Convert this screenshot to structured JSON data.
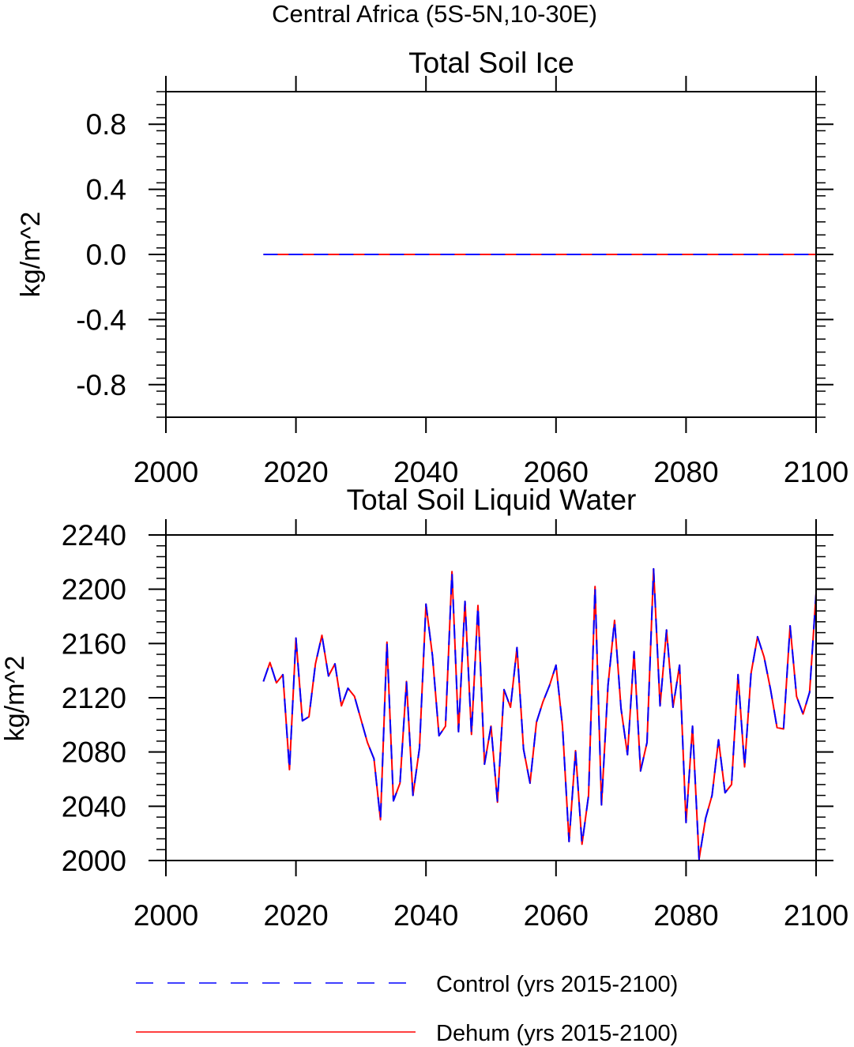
{
  "figure_title": "Central Africa (5S-5N,10-30E)",
  "legend": {
    "control_label": "Control (yrs 2015-2100)",
    "dehum_label": "Dehum (yrs 2015-2100)",
    "control_color": "#0000ff",
    "dehum_color": "#ff0000"
  },
  "chart_data": [
    {
      "type": "line",
      "title": "Total Soil Ice",
      "xlabel": "",
      "ylabel": "kg/m^2",
      "xlim": [
        2000,
        2100
      ],
      "ylim": [
        -1.0,
        1.0
      ],
      "x_ticks": [
        2000,
        2020,
        2040,
        2060,
        2080,
        2100
      ],
      "y_ticks": [
        -0.8,
        -0.4,
        0.0,
        0.4,
        0.8
      ],
      "y_tick_labels": [
        "-0.8",
        "-0.4",
        "0.0",
        "0.4",
        "0.8"
      ],
      "x": [
        2015,
        2100
      ],
      "series": [
        {
          "name": "Control (yrs 2015-2100)",
          "color": "#0000ff",
          "style": "dashed",
          "values": [
            0.0,
            0.0
          ]
        },
        {
          "name": "Dehum (yrs 2015-2100)",
          "color": "#ff0000",
          "style": "solid",
          "values": [
            0.0,
            0.0
          ]
        }
      ]
    },
    {
      "type": "line",
      "title": "Total Soil Liquid Water",
      "xlabel": "",
      "ylabel": "kg/m^2",
      "xlim": [
        2000,
        2100
      ],
      "ylim": [
        2000,
        2240
      ],
      "x_ticks": [
        2000,
        2020,
        2040,
        2060,
        2080,
        2100
      ],
      "y_ticks": [
        2000,
        2040,
        2080,
        2120,
        2160,
        2200,
        2240
      ],
      "y_tick_labels": [
        "2000",
        "2040",
        "2080",
        "2120",
        "2160",
        "2200",
        "2240"
      ],
      "x": [
        2015,
        2016,
        2017,
        2018,
        2019,
        2020,
        2021,
        2022,
        2023,
        2024,
        2025,
        2026,
        2027,
        2028,
        2029,
        2030,
        2031,
        2032,
        2033,
        2034,
        2035,
        2036,
        2037,
        2038,
        2039,
        2040,
        2041,
        2042,
        2043,
        2044,
        2045,
        2046,
        2047,
        2048,
        2049,
        2050,
        2051,
        2052,
        2053,
        2054,
        2055,
        2056,
        2057,
        2058,
        2059,
        2060,
        2061,
        2062,
        2063,
        2064,
        2065,
        2066,
        2067,
        2068,
        2069,
        2070,
        2071,
        2072,
        2073,
        2074,
        2075,
        2076,
        2077,
        2078,
        2079,
        2080,
        2081,
        2082,
        2083,
        2084,
        2085,
        2086,
        2087,
        2088,
        2089,
        2090,
        2091,
        2092,
        2093,
        2094,
        2095,
        2096,
        2097,
        2098,
        2099,
        2100
      ],
      "series": [
        {
          "name": "Control (yrs 2015-2100)",
          "color": "#0000ff",
          "style": "dashed",
          "values": [
            2132,
            2146,
            2131,
            2137,
            2067,
            2164,
            2103,
            2106,
            2145,
            2166,
            2136,
            2145,
            2114,
            2127,
            2121,
            2104,
            2087,
            2075,
            2030,
            2161,
            2044,
            2057,
            2132,
            2048,
            2083,
            2189,
            2151,
            2092,
            2099,
            2213,
            2095,
            2191,
            2093,
            2188,
            2071,
            2099,
            2043,
            2126,
            2113,
            2157,
            2082,
            2057,
            2102,
            2117,
            2129,
            2144,
            2099,
            2014,
            2081,
            2012,
            2048,
            2202,
            2041,
            2129,
            2177,
            2112,
            2078,
            2154,
            2066,
            2087,
            2215,
            2114,
            2170,
            2113,
            2144,
            2028,
            2099,
            2001,
            2031,
            2048,
            2089,
            2050,
            2056,
            2137,
            2069,
            2138,
            2165,
            2150,
            2126,
            2098,
            2097,
            2173,
            2121,
            2108,
            2124,
            2197
          ]
        },
        {
          "name": "Dehum (yrs 2015-2100)",
          "color": "#ff0000",
          "style": "solid",
          "values": [
            2132,
            2146,
            2131,
            2137,
            2067,
            2164,
            2103,
            2106,
            2145,
            2166,
            2136,
            2145,
            2114,
            2127,
            2121,
            2104,
            2087,
            2075,
            2030,
            2161,
            2044,
            2057,
            2132,
            2048,
            2083,
            2189,
            2151,
            2092,
            2099,
            2213,
            2095,
            2191,
            2093,
            2188,
            2071,
            2099,
            2043,
            2126,
            2113,
            2157,
            2082,
            2057,
            2102,
            2117,
            2129,
            2144,
            2099,
            2014,
            2081,
            2012,
            2048,
            2202,
            2041,
            2129,
            2177,
            2112,
            2078,
            2154,
            2066,
            2087,
            2215,
            2114,
            2170,
            2113,
            2144,
            2028,
            2099,
            2001,
            2031,
            2048,
            2089,
            2050,
            2056,
            2137,
            2069,
            2138,
            2165,
            2150,
            2126,
            2098,
            2097,
            2173,
            2121,
            2108,
            2124,
            2197
          ]
        }
      ]
    }
  ]
}
